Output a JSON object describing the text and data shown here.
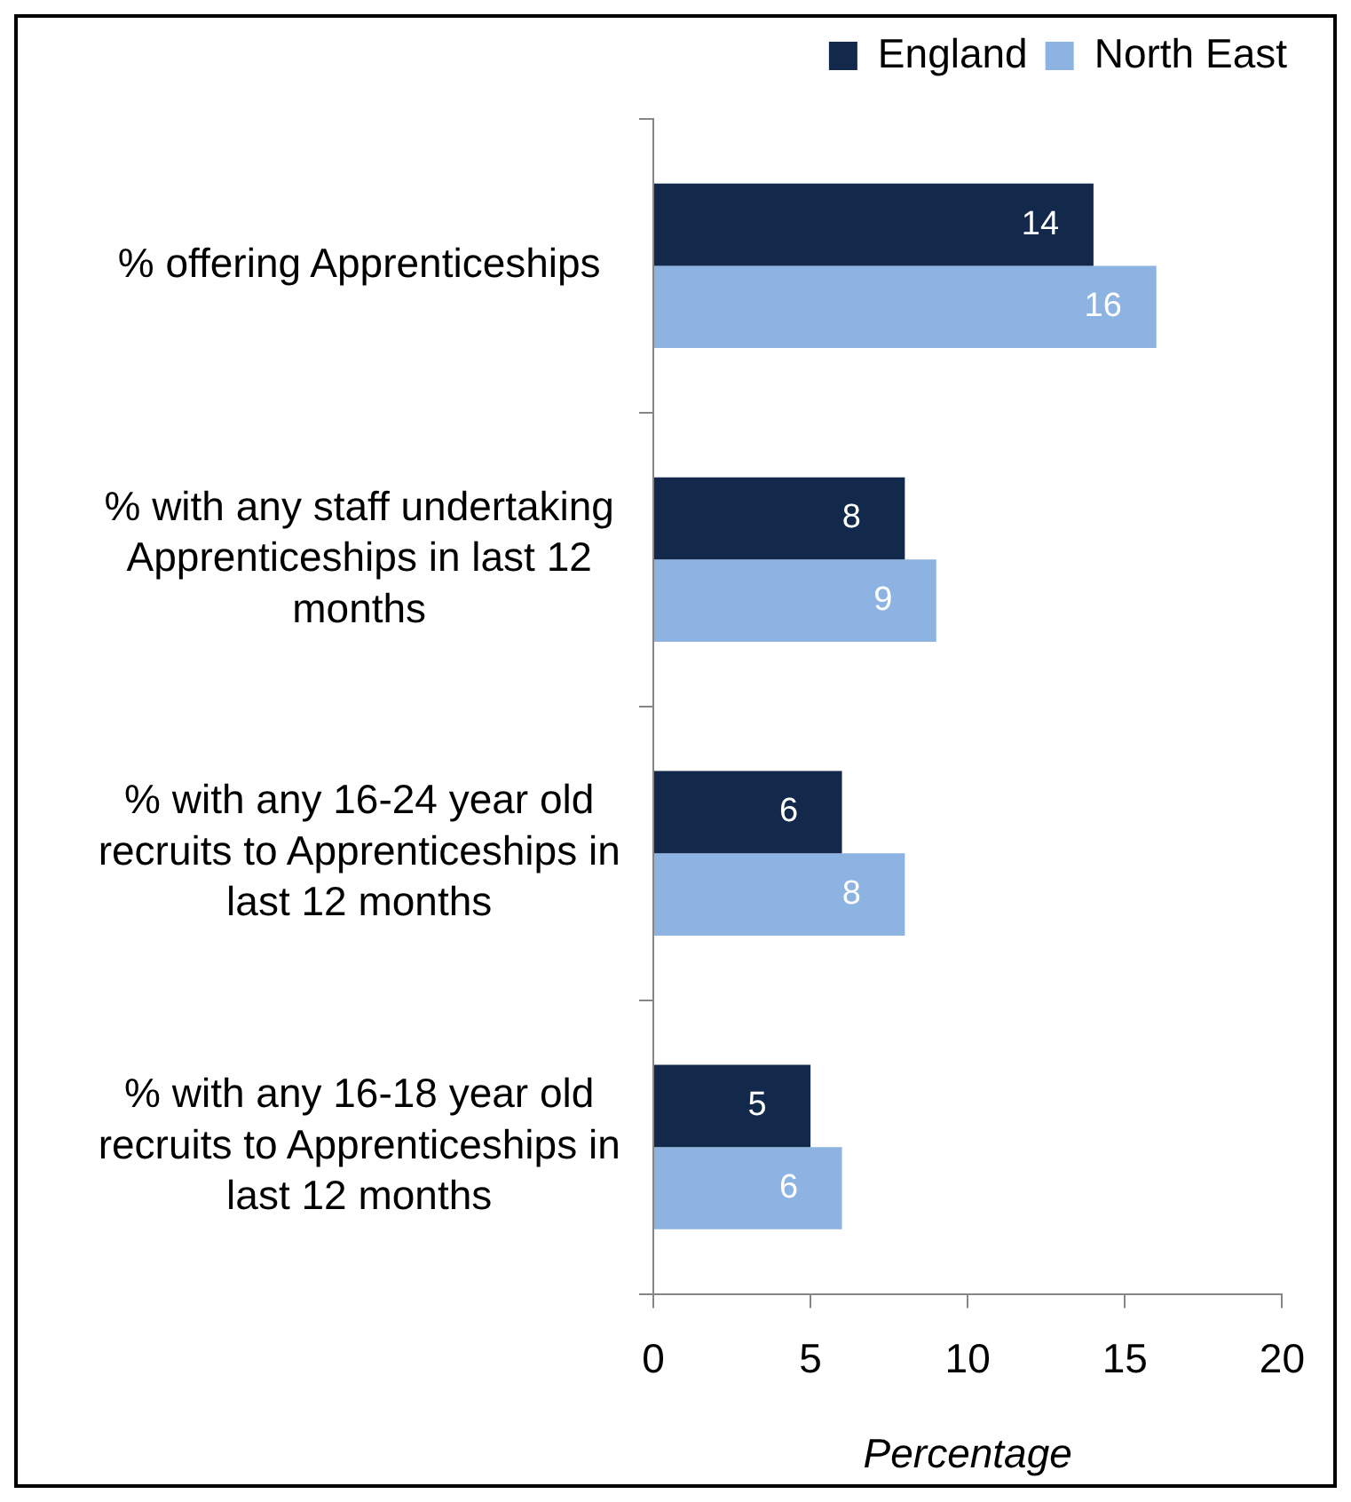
{
  "chart_data": {
    "type": "bar",
    "orientation": "horizontal",
    "categories": [
      "% offering Apprenticeships",
      "% with any staff undertaking Apprenticeships in last 12 months",
      "% with any 16-24 year old recruits to Apprenticeships in last 12 months",
      "% with any 16-18 year old recruits to Apprenticeships in last 12 months"
    ],
    "series": [
      {
        "name": "England",
        "color": "#13294b",
        "values": [
          14,
          8,
          6,
          5
        ]
      },
      {
        "name": "North East",
        "color": "#8db3e2",
        "values": [
          16,
          9,
          8,
          6
        ]
      }
    ],
    "xlabel": "Percentage",
    "xlim": [
      0,
      20
    ],
    "xticks": [
      0,
      5,
      10,
      15,
      20
    ],
    "grid": false,
    "legend": "top right",
    "data_labels": true
  }
}
